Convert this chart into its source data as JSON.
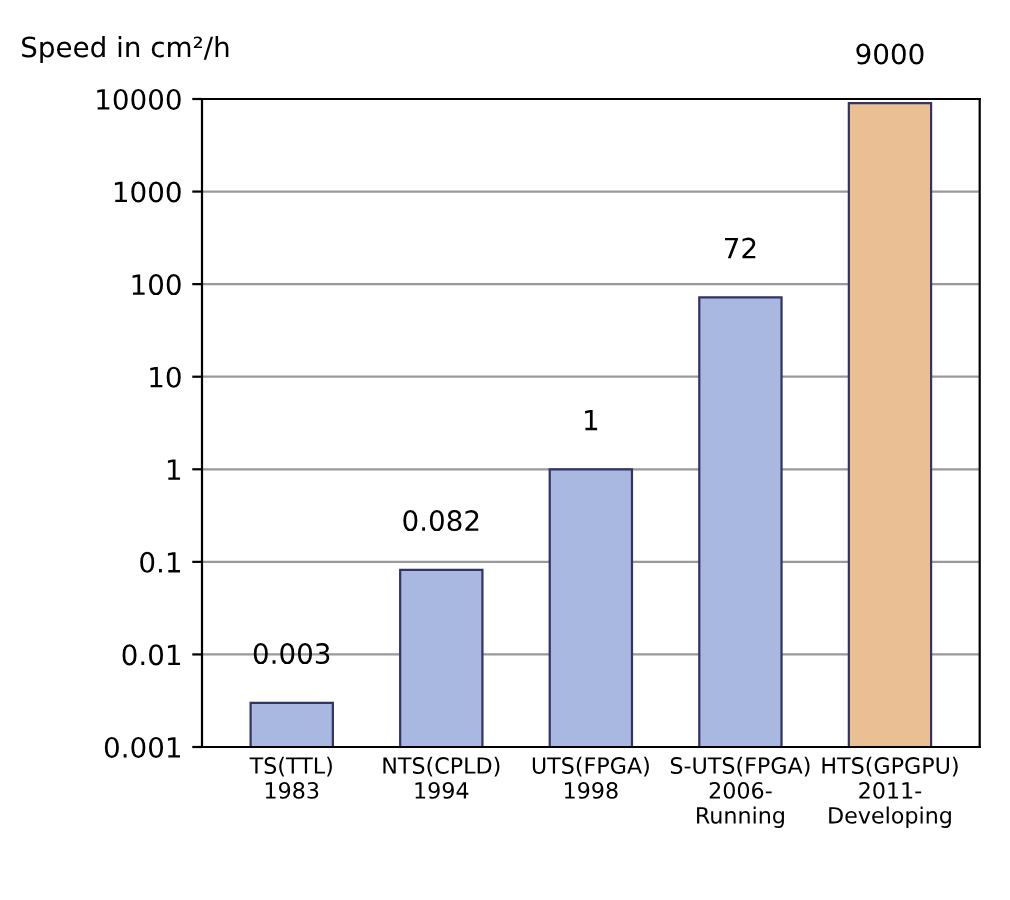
{
  "chart_data": {
    "type": "bar",
    "ylabel": "Speed in cm²/h",
    "categories": [
      "TS(TTL)\n1983",
      "NTS(CPLD)\n1994",
      "UTS(FPGA)\n1998",
      "S-UTS(FPGA)\n2006-\nRunning",
      "HTS(GPGPU)\n2011-\nDeveloping"
    ],
    "values": [
      0.003,
      0.082,
      1,
      72,
      9000
    ],
    "colors": [
      "#a9b8e0",
      "#a9b8e0",
      "#a9b8e0",
      "#a9b8e0",
      "#eabf94"
    ],
    "log": "y",
    "ylim": [
      0.001,
      10000
    ],
    "yticks": [
      0.001,
      0.01,
      0.1,
      1,
      10,
      100,
      1000,
      10000
    ],
    "grid": "y",
    "data_labels": true
  }
}
